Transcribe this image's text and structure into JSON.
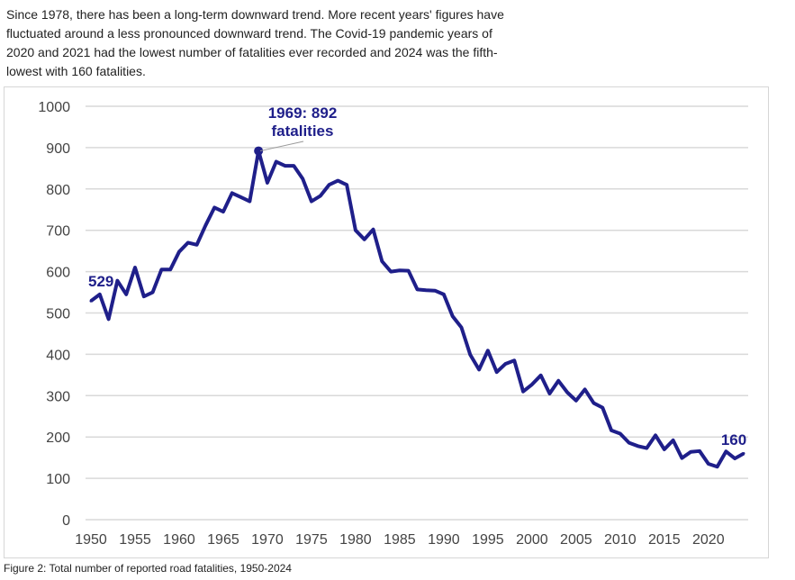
{
  "intro_text": "Since 1978, there has been a long-term downward trend. More recent years' figures have fluctuated around a less pronounced downward trend. The Covid-19 pandemic years of 2020 and 2021 had the lowest number of fatalities ever recorded and 2024 was the fifth-lowest with 160 fatalities.",
  "caption": "Figure 2: Total number of reported road fatalities, 1950-2024",
  "colors": {
    "line": "#1f1f8a",
    "grid": "#d9d9d9",
    "leader": "#999999"
  },
  "chart_data": {
    "type": "line",
    "title": "",
    "xlabel": "",
    "ylabel": "",
    "xlim": [
      1950,
      2024
    ],
    "ylim": [
      0,
      1000
    ],
    "grid": true,
    "xticks": [
      1950,
      1955,
      1960,
      1965,
      1970,
      1975,
      1980,
      1985,
      1990,
      1995,
      2000,
      2005,
      2010,
      2015,
      2020
    ],
    "yticks": [
      0,
      100,
      200,
      300,
      400,
      500,
      600,
      700,
      800,
      900,
      1000
    ],
    "series": [
      {
        "name": "Road fatalities",
        "x_start": 1950,
        "values": [
          529,
          545,
          485,
          578,
          545,
          610,
          540,
          550,
          605,
          605,
          648,
          670,
          665,
          712,
          755,
          745,
          790,
          780,
          770,
          892,
          815,
          866,
          856,
          856,
          825,
          770,
          783,
          810,
          820,
          810,
          700,
          678,
          702,
          625,
          600,
          603,
          602,
          557,
          555,
          554,
          545,
          492,
          465,
          399,
          363,
          409,
          357,
          377,
          385,
          310,
          327,
          349,
          305,
          336,
          308,
          288,
          315,
          282,
          271,
          216,
          208,
          186,
          178,
          173,
          204,
          170,
          192,
          149,
          164,
          166,
          135,
          128,
          165,
          148,
          160
        ]
      }
    ],
    "annotations": [
      {
        "year": 1950,
        "label": "529"
      },
      {
        "year": 1969,
        "label_line1": "1969: 892",
        "label_line2": "fatalities"
      },
      {
        "year": 2024,
        "label": "160"
      }
    ]
  }
}
